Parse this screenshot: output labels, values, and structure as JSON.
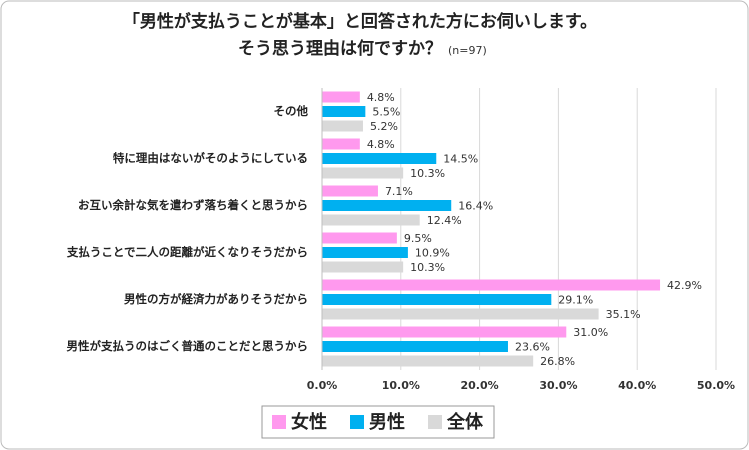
{
  "chart_data": {
    "type": "bar",
    "orientation": "horizontal",
    "title": [
      "「男性が支払うことが基本」と回答された方にお伺いします。",
      "そう思う理由は何ですか？"
    ],
    "subtitle": "(n=97)",
    "categories": [
      "その他",
      "特に理由はないがそのようにしている",
      "お互い余計な気を遣わず落ち着くと思うから",
      "支払うことで二人の距離が近くなりそうだから",
      "男性の方が経済力がありそうだから",
      "男性が支払うのはごく普通のことだと思うから"
    ],
    "series": [
      {
        "name": "女性",
        "color": "#ff99ee",
        "values": [
          4.8,
          4.8,
          7.1,
          9.5,
          42.9,
          31.0
        ],
        "value_labels": [
          "4.8%",
          "4.8%",
          "7.1%",
          "9.5%",
          "42.9%",
          "31.0%"
        ]
      },
      {
        "name": "男性",
        "color": "#00b0f0",
        "values": [
          5.5,
          14.5,
          16.4,
          10.9,
          29.1,
          23.6
        ],
        "value_labels": [
          "5.5%",
          "14.5%",
          "16.4%",
          "10.9%",
          "29.1%",
          "23.6%"
        ]
      },
      {
        "name": "全体",
        "color": "#d9d9d9",
        "values": [
          5.2,
          10.3,
          12.4,
          10.3,
          35.1,
          26.8
        ],
        "value_labels": [
          "5.2%",
          "10.3%",
          "12.4%",
          "10.3%",
          "35.1%",
          "26.8%"
        ]
      }
    ],
    "xlim": [
      0,
      50
    ],
    "xticks": [
      {
        "value": 0,
        "label": "0.0%"
      },
      {
        "value": 10,
        "label": "10.0%"
      },
      {
        "value": 20,
        "label": "20.0%"
      },
      {
        "value": 30,
        "label": "30.0%"
      },
      {
        "value": 40,
        "label": "40.0%"
      },
      {
        "value": 50,
        "label": "50.0%"
      }
    ],
    "grid": true,
    "legend": "bottom"
  }
}
